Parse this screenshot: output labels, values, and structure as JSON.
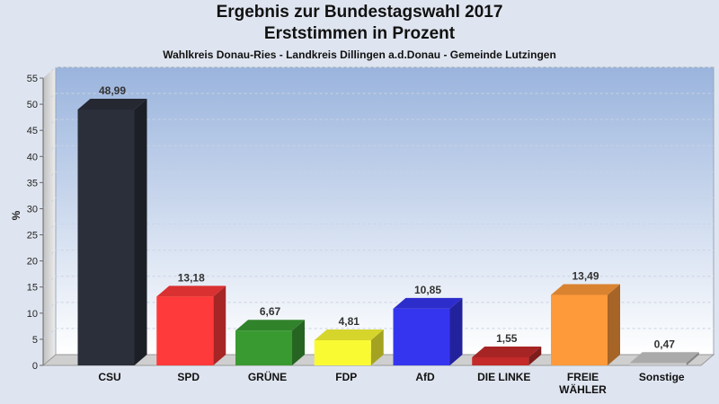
{
  "title_line1": "Ergebnis zur Bundestagswahl 2017",
  "title_line2": "Erststimmen in Prozent",
  "subtitle": "Wahlkreis Donau-Ries - Landkreis Dillingen a.d.Donau - Gemeinde Lutzingen",
  "chart_data": {
    "type": "bar",
    "title": "Ergebnis zur Bundestagswahl 2017 Erststimmen in Prozent",
    "subtitle": "Wahlkreis Donau-Ries - Landkreis Dillingen a.d.Donau - Gemeinde Lutzingen",
    "ylabel": "%",
    "xlabel": "",
    "ylim": [
      0,
      55
    ],
    "yticks": [
      0,
      5,
      10,
      15,
      20,
      25,
      30,
      35,
      40,
      45,
      50,
      55
    ],
    "grid": true,
    "categories": [
      {
        "label": [
          "CSU"
        ],
        "value": 48.99,
        "value_label": "48,99",
        "color": "#2b2f3a"
      },
      {
        "label": [
          "SPD"
        ],
        "value": 13.18,
        "value_label": "13,18",
        "color": "#ff3a3a"
      },
      {
        "label": [
          "GRÜNE"
        ],
        "value": 6.67,
        "value_label": "6,67",
        "color": "#3a9a32"
      },
      {
        "label": [
          "FDP"
        ],
        "value": 4.81,
        "value_label": "4,81",
        "color": "#fafa32"
      },
      {
        "label": [
          "AfD"
        ],
        "value": 10.85,
        "value_label": "10,85",
        "color": "#3535f0"
      },
      {
        "label": [
          "DIE LINKE"
        ],
        "value": 1.55,
        "value_label": "1,55",
        "color": "#c42a2a"
      },
      {
        "label": [
          "FREIE",
          "WÄHLER"
        ],
        "value": 13.49,
        "value_label": "13,49",
        "color": "#ff9a3a"
      },
      {
        "label": [
          "Sonstige"
        ],
        "value": 0.47,
        "value_label": "0,47",
        "color": "#c8c8c8"
      }
    ]
  }
}
